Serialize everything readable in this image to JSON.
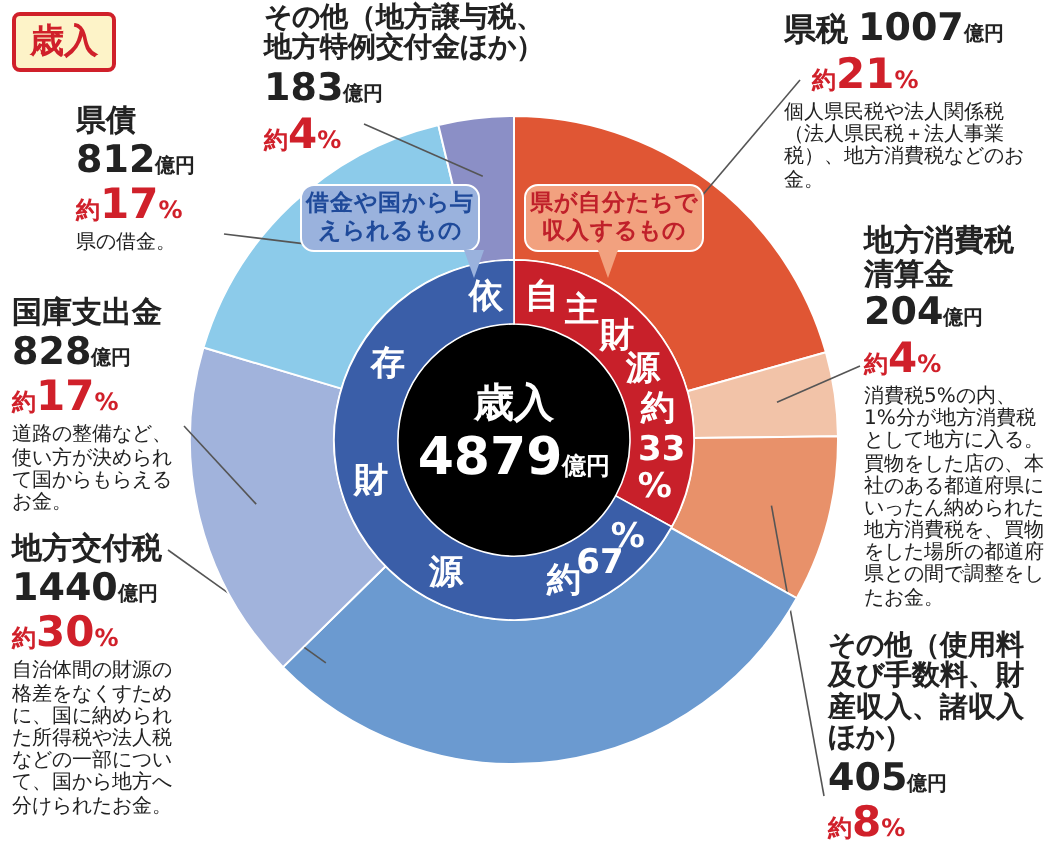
{
  "chart_data": [
    {
      "type": "donut",
      "title": "歳入",
      "categories": [
        "県税",
        "地方消費税清算金",
        "その他（使用料及び手数料、財産収入、諸収入ほか）",
        "地方交付税",
        "国庫支出金",
        "県債",
        "その他（地方譲与税、地方特例交付金ほか）"
      ],
      "values": [
        1007,
        204,
        405,
        1440,
        828,
        812,
        183
      ],
      "colors": [
        "#e05634",
        "#f2c3a8",
        "#e8916a",
        "#6b9ad0",
        "#a1b3dc",
        "#8ccbea",
        "#8b8fc6"
      ],
      "value_labels": [
        "1007億円",
        "204億円",
        "405億円",
        "1440億円",
        "828億円",
        "812億円",
        "183億円"
      ],
      "annotations": [
        {
          "text": "約21%",
          "x": "県税"
        },
        {
          "text": "個人県民税や法人関係税（法人県民税＋法人事業税）、地方消費税などのお金。",
          "x": "県税"
        },
        {
          "text": "約4%",
          "x": "地方消費税清算金"
        },
        {
          "text": "消費税5%の内、1%分が地方消費税として地方に入る。買物をした店の、本社のある都道府県にいったん納められた地方消費税を、買物をした場所の都道府県との間で調整をしたお金。",
          "x": "地方消費税清算金"
        },
        {
          "text": "約8%",
          "x": "その他（使用料及び手数料、財産収入、諸収入ほか）"
        },
        {
          "text": "約30%",
          "x": "地方交付税"
        },
        {
          "text": "自治体間の財源の格差をなくすために、国に納められた所得税や法人税などの一部について、国から地方へ分けられたお金。",
          "x": "地方交付税"
        },
        {
          "text": "約17%",
          "x": "国庫支出金"
        },
        {
          "text": "道路の整備など、使い方が決められて国からもらえるお金。",
          "x": "国庫支出金"
        },
        {
          "text": "約17%",
          "x": "県債"
        },
        {
          "text": "県の借金。",
          "x": "県債"
        },
        {
          "text": "約4%",
          "x": "その他（地方譲与税、地方特例交付金ほか）"
        }
      ]
    },
    {
      "type": "donut",
      "categories": [
        "自主財源",
        "依存財源"
      ],
      "values": [
        33,
        67
      ],
      "colors": [
        "#c8202a",
        "#3a5ea8"
      ],
      "value_labels": [
        "約33%",
        "約67%"
      ],
      "annotations": [
        "歳入",
        "4879億円",
        "借金や国から与えられるもの",
        "県が自分たちで収入するもの"
      ]
    }
  ]
}
